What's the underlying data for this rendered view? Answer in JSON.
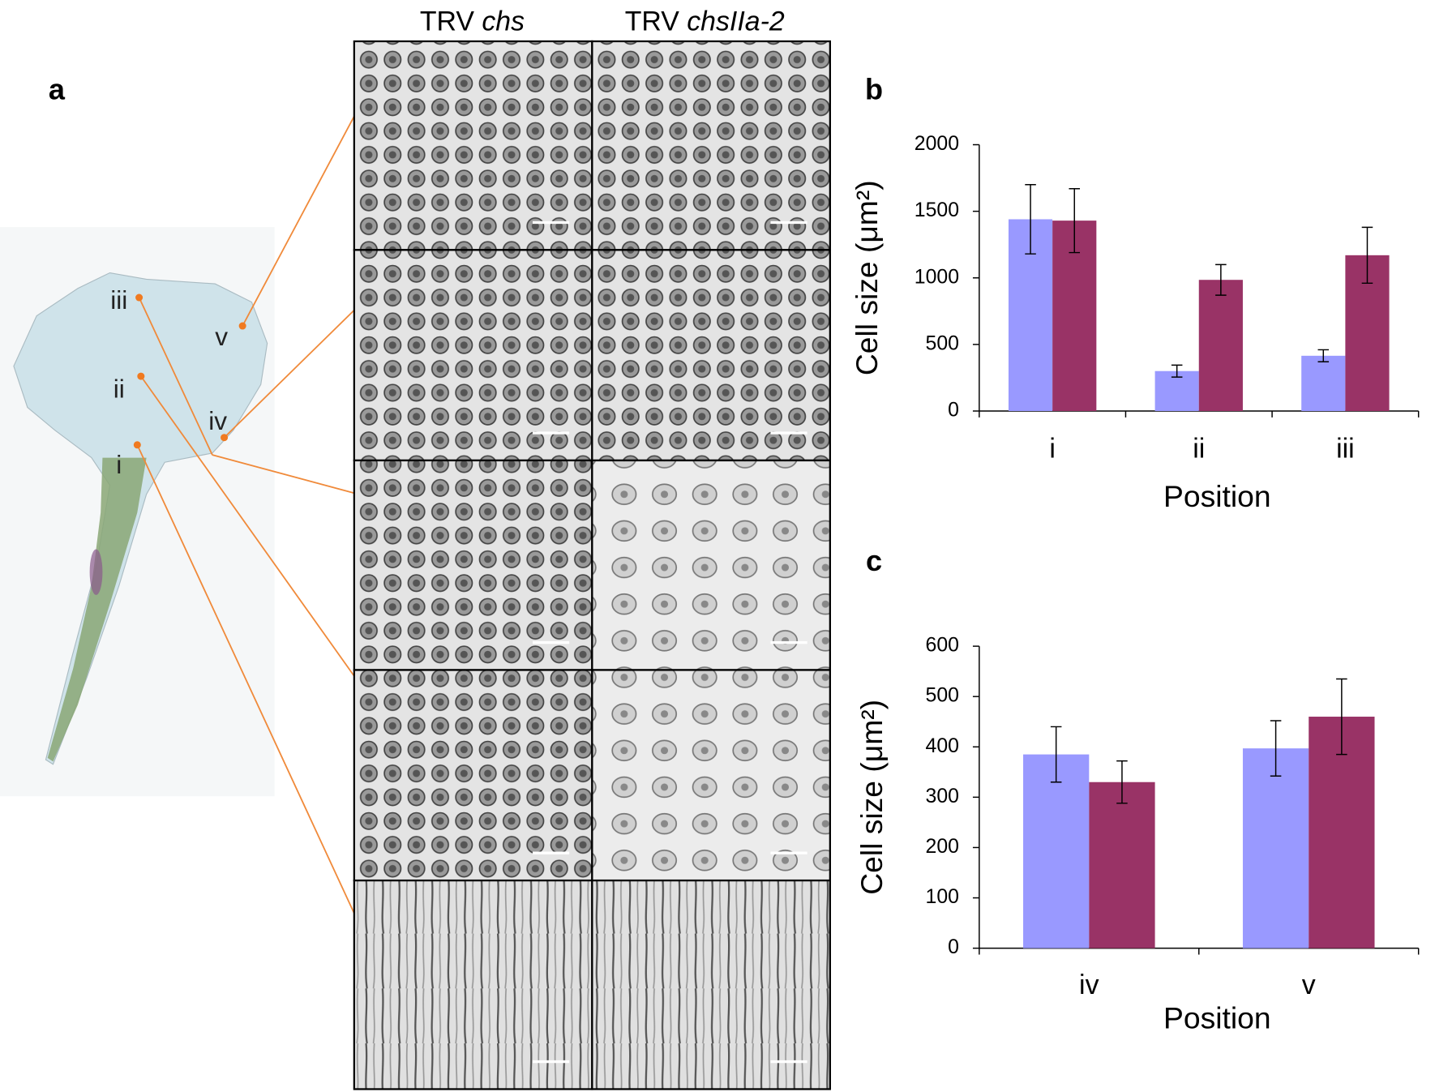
{
  "figure": {
    "panel_labels": [
      "a",
      "b",
      "c"
    ],
    "column_headers": [
      {
        "prefix": "TRV",
        "gene": "chs"
      },
      {
        "prefix": "TRV",
        "gene": "chsIIa-2"
      }
    ],
    "petal_labels": [
      "iii",
      "v",
      "ii",
      "iv",
      "i"
    ]
  },
  "chart_data": [
    {
      "type": "bar",
      "categories": [
        "i",
        "ii",
        "iii"
      ],
      "series": [
        {
          "color": "#9999ff",
          "values": [
            1440,
            300,
            415
          ],
          "errors": [
            260,
            45,
            45
          ]
        },
        {
          "color": "#993366",
          "values": [
            1430,
            985,
            1170
          ],
          "errors": [
            240,
            115,
            210
          ]
        }
      ],
      "ylabel": "Cell size (μm²)",
      "xlabel": "Position",
      "ylim": [
        0,
        2000
      ],
      "yticks": [
        0,
        500,
        1000,
        1500,
        2000
      ]
    },
    {
      "type": "bar",
      "categories": [
        "iv",
        "v"
      ],
      "series": [
        {
          "color": "#9999ff",
          "values": [
            385,
            397
          ],
          "errors": [
            55,
            55
          ]
        },
        {
          "color": "#993366",
          "values": [
            330,
            460
          ],
          "errors": [
            42,
            75
          ]
        }
      ],
      "ylabel": "Cell size (μm²)",
      "xlabel": "Position",
      "ylim": [
        0,
        600
      ],
      "yticks": [
        0,
        100,
        200,
        300,
        400,
        500,
        600
      ]
    }
  ]
}
